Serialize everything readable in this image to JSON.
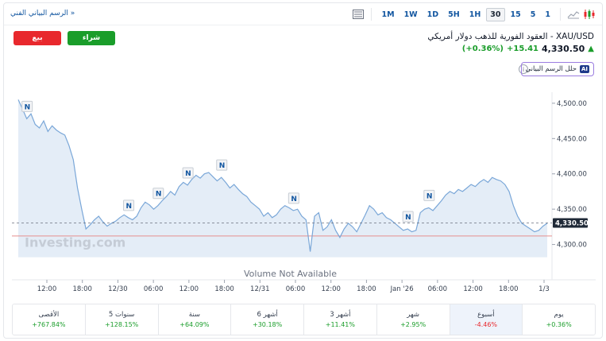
{
  "toolbar": {
    "tech_chart_link": "الرسم البياني الفني »",
    "timeframes": [
      "1M",
      "1W",
      "1D",
      "5H",
      "1H",
      "30",
      "15",
      "5",
      "1"
    ],
    "active_timeframe": "30"
  },
  "actions": {
    "sell_label": "بيع",
    "buy_label": "شراء"
  },
  "instrument": {
    "title": "XAU/USD - العقود الفورية للذهب دولار أمريكي",
    "price": "4,330.50",
    "change": "+15.41",
    "change_pct": "(+0.36%)",
    "analyze_label": "حلل الرسم البياني",
    "ai_badge": "AI",
    "info_glyph": "i"
  },
  "chart_data": {
    "type": "area",
    "title": "",
    "watermark": "Investing.com",
    "volume_note": "Volume Not Available",
    "ylim": [
      4250,
      4510
    ],
    "yticks": [
      "4,500.00",
      "4,450.00",
      "4,400.00",
      "4,350.00",
      "4,300.00"
    ],
    "current_price_label": "4,330.50",
    "current_price": 4330.5,
    "reference_level": 4312,
    "xticks": [
      "12:00",
      "18:00",
      "12/30",
      "06:00",
      "12:00",
      "18:00",
      "12/31",
      "06:00",
      "12:00",
      "18:00",
      "Jan '26",
      "06:00",
      "12:00",
      "18:00",
      "1/3"
    ],
    "news_marker": "N",
    "series": [
      {
        "values": [
          4505,
          4492,
          4478,
          4485,
          4470,
          4465,
          4475,
          4460,
          4468,
          4462,
          4458,
          4455,
          4440,
          4420,
          4380,
          4350,
          4322,
          4328,
          4335,
          4340,
          4332,
          4326,
          4330,
          4333,
          4338,
          4342,
          4338,
          4335,
          4340,
          4352,
          4360,
          4356,
          4350,
          4355,
          4362,
          4368,
          4375,
          4370,
          4382,
          4388,
          4384,
          4392,
          4398,
          4394,
          4400,
          4402,
          4396,
          4390,
          4395,
          4388,
          4380,
          4385,
          4378,
          4372,
          4368,
          4360,
          4355,
          4350,
          4340,
          4345,
          4338,
          4342,
          4350,
          4355,
          4352,
          4348,
          4350,
          4340,
          4335,
          4290,
          4340,
          4345,
          4320,
          4325,
          4335,
          4320,
          4310,
          4322,
          4330,
          4325,
          4318,
          4330,
          4342,
          4355,
          4350,
          4342,
          4345,
          4338,
          4335,
          4330,
          4325,
          4320,
          4322,
          4318,
          4320,
          4345,
          4350,
          4352,
          4348,
          4355,
          4362,
          4370,
          4375,
          4372,
          4378,
          4375,
          4380,
          4385,
          4382,
          4388,
          4392,
          4388,
          4395,
          4392,
          4390,
          4385,
          4375,
          4355,
          4340,
          4330,
          4326,
          4322,
          4318,
          4320,
          4326,
          4330
        ]
      }
    ],
    "news_positions": [
      2,
      26,
      33,
      40,
      48,
      65,
      92,
      97
    ]
  },
  "performance": [
    {
      "label": "يوم",
      "value": "+0.36%",
      "dir": "pos"
    },
    {
      "label": "أسبوع",
      "value": "-4.46%",
      "dir": "neg"
    },
    {
      "label": "شهر",
      "value": "+2.95%",
      "dir": "pos"
    },
    {
      "label": "3 أشهر",
      "value": "+11.41%",
      "dir": "pos"
    },
    {
      "label": "6 أشهر",
      "value": "+30.18%",
      "dir": "pos"
    },
    {
      "label": "سنة",
      "value": "+64.09%",
      "dir": "pos"
    },
    {
      "label": "5 سنوات",
      "value": "+128.15%",
      "dir": "pos"
    },
    {
      "label": "الأقصى",
      "value": "+767.84%",
      "dir": "pos"
    }
  ],
  "performance_selected": 1,
  "colors": {
    "accent": "#1256a0",
    "up": "#1a9d2a",
    "down": "#e8282d",
    "line": "#7aa7d8",
    "area": "#dbe7f4",
    "reference": "#e58f8f"
  }
}
